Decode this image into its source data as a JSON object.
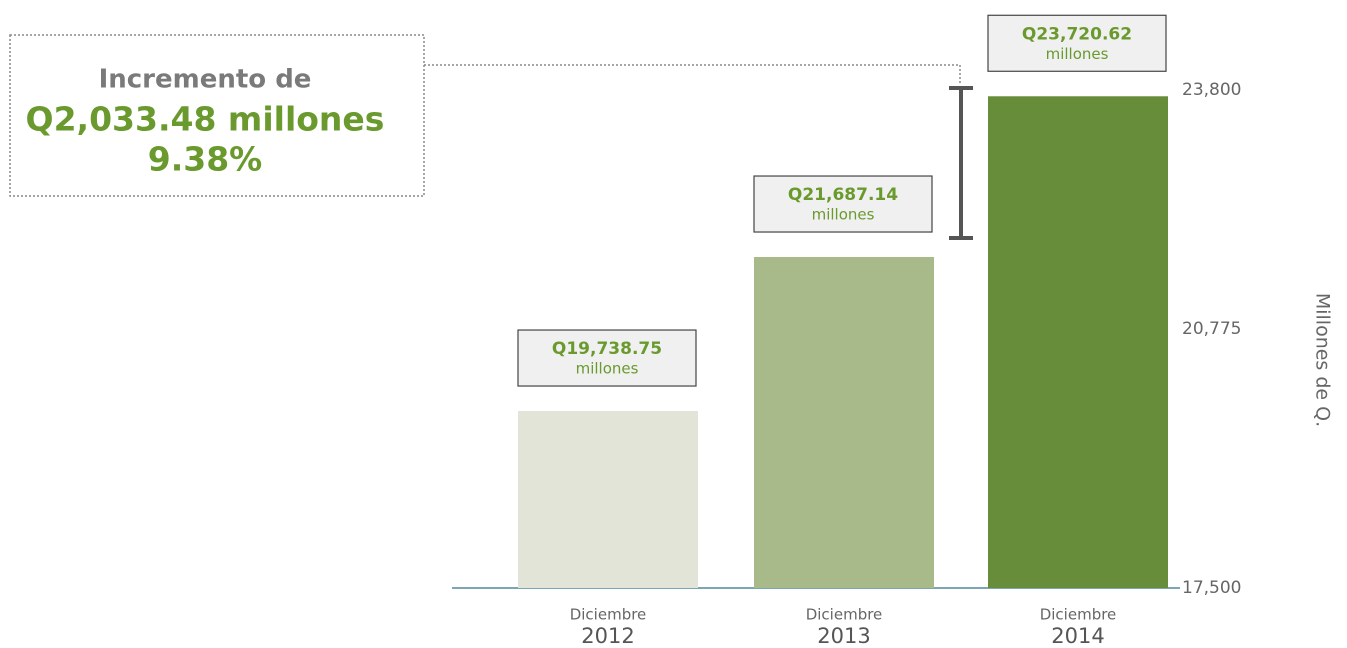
{
  "chart_data": {
    "type": "bar",
    "categories": [
      "2012",
      "2013",
      "2014"
    ],
    "category_month": "Diciembre",
    "values": [
      19738.75,
      21687.14,
      23720.62
    ],
    "value_labels": [
      "Q19,738.75",
      "Q21,687.14",
      "Q23,720.62"
    ],
    "value_unit": "millones",
    "colors": [
      "#e2e4d8",
      "#a8b98a",
      "#678c3a"
    ],
    "ylim": [
      17500,
      23800
    ],
    "yticks": [
      {
        "value": 17500,
        "label": "17,500"
      },
      {
        "value": 20775,
        "label": "20,775"
      },
      {
        "value": 23800,
        "label": "23,800"
      }
    ],
    "y_label": "Millones de Q.",
    "annotation": {
      "line1": "Incremento de",
      "line2": "Q2,033.48 millones",
      "line3": "9.38%"
    }
  }
}
